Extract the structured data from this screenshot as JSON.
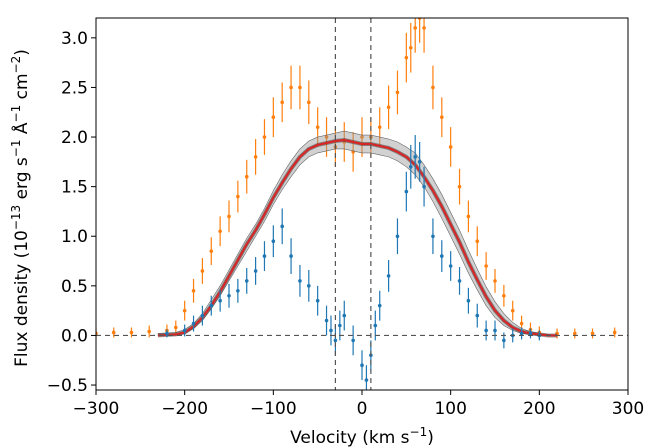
{
  "chart_data": {
    "type": "scatter",
    "xlabel": "Velocity (km s",
    "xlabel_sup": "−1",
    "xlabel_end": ")",
    "ylabel_parts": [
      "Flux density (10",
      "−13",
      " erg s",
      "−1",
      " Å",
      "−1",
      " cm",
      "−2",
      ")"
    ],
    "xlim": [
      -300,
      300
    ],
    "ylim": [
      -0.55,
      3.2
    ],
    "xticks": [
      -300,
      -200,
      -100,
      0,
      100,
      200,
      300
    ],
    "xtick_labels": [
      "−300",
      "−200",
      "−100",
      "0",
      "100",
      "200",
      "300"
    ],
    "yticks": [
      -0.5,
      0.0,
      0.5,
      1.0,
      1.5,
      2.0,
      2.5,
      3.0
    ],
    "ytick_labels": [
      "−0.5",
      "0.0",
      "0.5",
      "1.0",
      "1.5",
      "2.0",
      "2.5",
      "3.0"
    ],
    "vlines": [
      -30,
      10
    ],
    "hlines": [
      0
    ],
    "grid": false,
    "colors": {
      "orange": "#ff7f0e",
      "blue": "#1f77b4",
      "model": "#d62728",
      "band": "#999999",
      "reference": "#555555"
    },
    "series": [
      {
        "color": "orange",
        "style": "errorbar",
        "x": [
          -300,
          -280,
          -260,
          -240,
          -220,
          -210,
          -200,
          -190,
          -180,
          -170,
          -160,
          -150,
          -140,
          -130,
          -120,
          -110,
          -100,
          -90,
          -80,
          -70,
          -60,
          -50,
          -40,
          -30,
          -20,
          -10,
          0,
          10,
          20,
          30,
          40,
          50,
          55,
          60,
          65,
          70,
          80,
          90,
          100,
          110,
          120,
          130,
          140,
          150,
          160,
          170,
          180,
          190,
          200,
          220,
          240,
          260,
          285
        ],
        "y": [
          0.02,
          0.03,
          0.03,
          0.04,
          0.05,
          0.08,
          0.25,
          0.45,
          0.65,
          0.85,
          1.05,
          1.2,
          1.4,
          1.6,
          1.8,
          2.0,
          2.2,
          2.35,
          2.5,
          2.5,
          2.35,
          2.1,
          2.0,
          1.9,
          1.95,
          1.85,
          2.0,
          2.0,
          2.1,
          2.3,
          2.45,
          2.8,
          2.9,
          3.1,
          3.2,
          3.1,
          2.5,
          2.2,
          1.9,
          1.5,
          1.2,
          0.95,
          0.7,
          0.55,
          0.4,
          0.25,
          0.12,
          0.06,
          0.03,
          0.02,
          0.02,
          0.02,
          0.03
        ],
        "err": [
          0.05,
          0.05,
          0.05,
          0.06,
          0.06,
          0.07,
          0.1,
          0.12,
          0.13,
          0.14,
          0.15,
          0.16,
          0.16,
          0.17,
          0.18,
          0.18,
          0.2,
          0.2,
          0.22,
          0.22,
          0.22,
          0.2,
          0.2,
          0.2,
          0.2,
          0.2,
          0.2,
          0.2,
          0.2,
          0.22,
          0.22,
          0.25,
          0.25,
          0.25,
          0.25,
          0.25,
          0.22,
          0.2,
          0.2,
          0.18,
          0.16,
          0.15,
          0.14,
          0.12,
          0.11,
          0.1,
          0.08,
          0.07,
          0.06,
          0.05,
          0.05,
          0.05,
          0.05
        ]
      },
      {
        "color": "blue",
        "style": "errorbar",
        "x": [
          -220,
          -200,
          -190,
          -180,
          -170,
          -160,
          -150,
          -140,
          -130,
          -120,
          -110,
          -100,
          -90,
          -80,
          -70,
          -60,
          -50,
          -40,
          -35,
          -30,
          -25,
          -20,
          -10,
          0,
          5,
          10,
          15,
          20,
          30,
          40,
          50,
          55,
          60,
          65,
          70,
          80,
          90,
          100,
          110,
          120,
          130,
          140,
          150,
          160,
          170,
          180,
          190,
          200
        ],
        "y": [
          0.02,
          0.05,
          0.12,
          0.2,
          0.3,
          0.35,
          0.4,
          0.45,
          0.55,
          0.65,
          0.8,
          0.95,
          1.1,
          0.8,
          0.55,
          0.5,
          0.35,
          0.15,
          0.05,
          -0.05,
          0.1,
          0.2,
          -0.05,
          -0.3,
          -0.45,
          -0.2,
          0.1,
          0.3,
          0.6,
          1.0,
          1.45,
          1.7,
          1.8,
          1.75,
          1.5,
          1.0,
          0.8,
          0.7,
          0.55,
          0.35,
          0.2,
          0.05,
          0.05,
          -0.05,
          0.0,
          0.02,
          0.02,
          0.0
        ],
        "err": [
          0.04,
          0.06,
          0.08,
          0.1,
          0.1,
          0.11,
          0.12,
          0.12,
          0.13,
          0.14,
          0.15,
          0.16,
          0.18,
          0.18,
          0.16,
          0.16,
          0.15,
          0.15,
          0.15,
          0.15,
          0.15,
          0.15,
          0.15,
          0.15,
          0.15,
          0.15,
          0.15,
          0.15,
          0.16,
          0.18,
          0.2,
          0.22,
          0.22,
          0.2,
          0.2,
          0.18,
          0.16,
          0.15,
          0.14,
          0.13,
          0.12,
          0.1,
          0.1,
          0.08,
          0.07,
          0.06,
          0.05,
          0.05
        ]
      },
      {
        "color": "band",
        "style": "band",
        "x": [
          -230,
          -210,
          -200,
          -190,
          -180,
          -170,
          -160,
          -150,
          -140,
          -130,
          -120,
          -110,
          -100,
          -90,
          -80,
          -70,
          -60,
          -50,
          -40,
          -30,
          -20,
          -10,
          0,
          10,
          20,
          30,
          40,
          50,
          60,
          70,
          80,
          90,
          100,
          110,
          120,
          130,
          140,
          150,
          160,
          170,
          180,
          190,
          200,
          210,
          220
        ],
        "lower": [
          0.0,
          0.0,
          0.02,
          0.07,
          0.15,
          0.27,
          0.4,
          0.55,
          0.7,
          0.85,
          1.0,
          1.15,
          1.32,
          1.47,
          1.6,
          1.72,
          1.8,
          1.84,
          1.86,
          1.88,
          1.88,
          1.86,
          1.84,
          1.84,
          1.82,
          1.8,
          1.76,
          1.7,
          1.62,
          1.5,
          1.35,
          1.18,
          1.0,
          0.82,
          0.63,
          0.46,
          0.3,
          0.18,
          0.1,
          0.05,
          0.02,
          0.01,
          0.0,
          0.0,
          0.0
        ],
        "upper": [
          0.02,
          0.03,
          0.06,
          0.12,
          0.22,
          0.36,
          0.5,
          0.66,
          0.82,
          0.98,
          1.12,
          1.28,
          1.46,
          1.62,
          1.76,
          1.88,
          1.96,
          2.0,
          2.02,
          2.04,
          2.06,
          2.04,
          2.02,
          2.02,
          2.0,
          1.98,
          1.95,
          1.9,
          1.84,
          1.72,
          1.58,
          1.42,
          1.24,
          1.06,
          0.86,
          0.67,
          0.49,
          0.34,
          0.22,
          0.13,
          0.07,
          0.04,
          0.02,
          0.01,
          0.0
        ]
      },
      {
        "color": "model",
        "style": "line",
        "x": [
          -230,
          -210,
          -200,
          -190,
          -180,
          -170,
          -160,
          -150,
          -140,
          -130,
          -120,
          -110,
          -100,
          -90,
          -80,
          -70,
          -60,
          -50,
          -40,
          -30,
          -20,
          -10,
          0,
          10,
          20,
          30,
          40,
          50,
          60,
          70,
          80,
          90,
          100,
          110,
          120,
          130,
          140,
          150,
          160,
          170,
          180,
          190,
          200,
          210,
          220
        ],
        "y": [
          0.0,
          0.01,
          0.03,
          0.09,
          0.18,
          0.3,
          0.44,
          0.6,
          0.76,
          0.92,
          1.06,
          1.22,
          1.39,
          1.54,
          1.68,
          1.8,
          1.88,
          1.92,
          1.94,
          1.96,
          1.97,
          1.95,
          1.93,
          1.93,
          1.91,
          1.89,
          1.85,
          1.8,
          1.72,
          1.6,
          1.46,
          1.3,
          1.12,
          0.94,
          0.74,
          0.56,
          0.39,
          0.25,
          0.15,
          0.08,
          0.04,
          0.02,
          0.01,
          0.0,
          0.0
        ]
      }
    ]
  }
}
